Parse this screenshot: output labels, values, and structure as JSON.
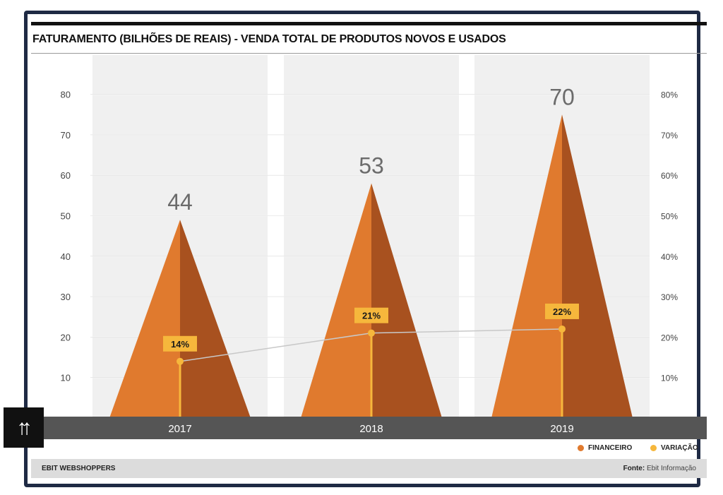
{
  "chart_data": {
    "type": "bar",
    "title": "FATURAMENTO (BILHÕES DE REAIS)  - VENDA TOTAL DE PRODUTOS NOVOS E USADOS",
    "categories": [
      "2017",
      "2018",
      "2019"
    ],
    "series": [
      {
        "name": "FINANCEIRO",
        "values": [
          44,
          53,
          70
        ],
        "color": "#e07a2e"
      },
      {
        "name": "VARIAÇÃO",
        "values": [
          14,
          21,
          22
        ],
        "color": "#f6b73c"
      }
    ],
    "value_labels": [
      "44",
      "53",
      "70"
    ],
    "variation_labels": [
      "14%",
      "21%",
      "22%"
    ],
    "y_left_ticks": [
      "10",
      "20",
      "30",
      "40",
      "50",
      "60",
      "70",
      "80"
    ],
    "y_right_ticks": [
      "10%",
      "20%",
      "30%",
      "40%",
      "50%",
      "60%",
      "70%",
      "80%"
    ],
    "ylim": [
      0,
      80
    ],
    "grid": true,
    "legend_position": "bottom-right"
  },
  "legend": {
    "financeiro": "FINANCEIRO",
    "variacao": "VARIAÇÃO"
  },
  "footer": {
    "brand": "EBIT WEBSHOPPERS",
    "source_label": "Fonte:",
    "source_value": "Ebit Informação"
  },
  "colors": {
    "financeiro_light": "#e07a2e",
    "financeiro_dark": "#a8511f",
    "variacao": "#f6b73c",
    "axis_band": "#555555",
    "frame": "#1f2a44"
  },
  "icons": {
    "scroll_top": "double-up-arrow-icon"
  }
}
